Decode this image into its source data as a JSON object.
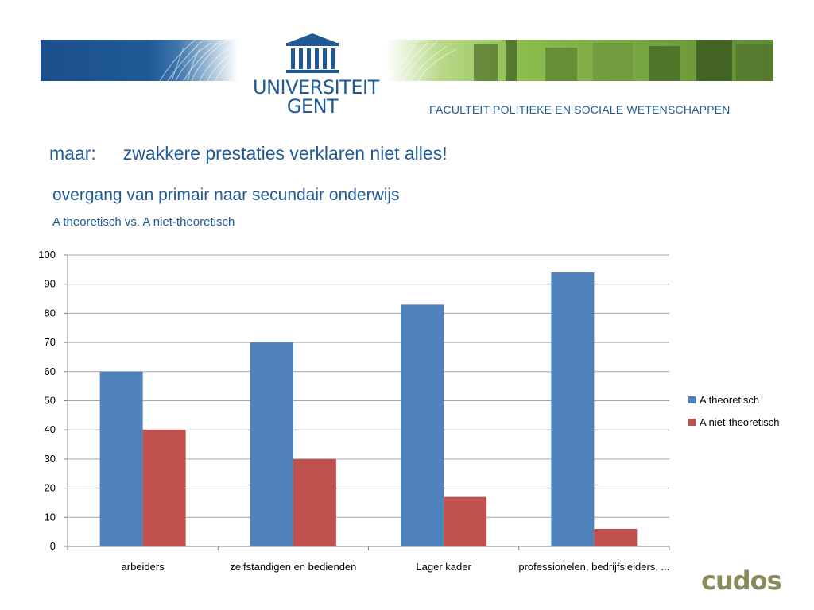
{
  "header": {
    "university_line1": "UNIVERSITEIT",
    "university_line2": "GENT",
    "faculty": "FACULTEIT POLITIEKE EN SOCIALE WETENSCHAPPEN"
  },
  "slide": {
    "lead": "maar:",
    "statement": "zwakkere prestaties verklaren niet alles!",
    "heading": "overgang van primair naar secundair onderwijs",
    "subheading": "A theoretisch vs. A niet-theoretisch"
  },
  "chart_data": {
    "type": "bar",
    "categories": [
      "arbeiders",
      "zelfstandigen en bedienden",
      "Lager kader",
      "professionelen, bedrijfsleiders, ..."
    ],
    "series": [
      {
        "name": "A theoretisch",
        "values": [
          60,
          70,
          83,
          94
        ],
        "color": "#4f81bd"
      },
      {
        "name": "A niet-theoretisch",
        "values": [
          40,
          30,
          17,
          6
        ],
        "color": "#c0504d"
      }
    ],
    "ylim": [
      0,
      100
    ],
    "yticks": [
      0,
      10,
      20,
      30,
      40,
      50,
      60,
      70,
      80,
      90,
      100
    ],
    "grid": true,
    "legend": "right"
  },
  "footer": {
    "logo_text": "cudos"
  }
}
